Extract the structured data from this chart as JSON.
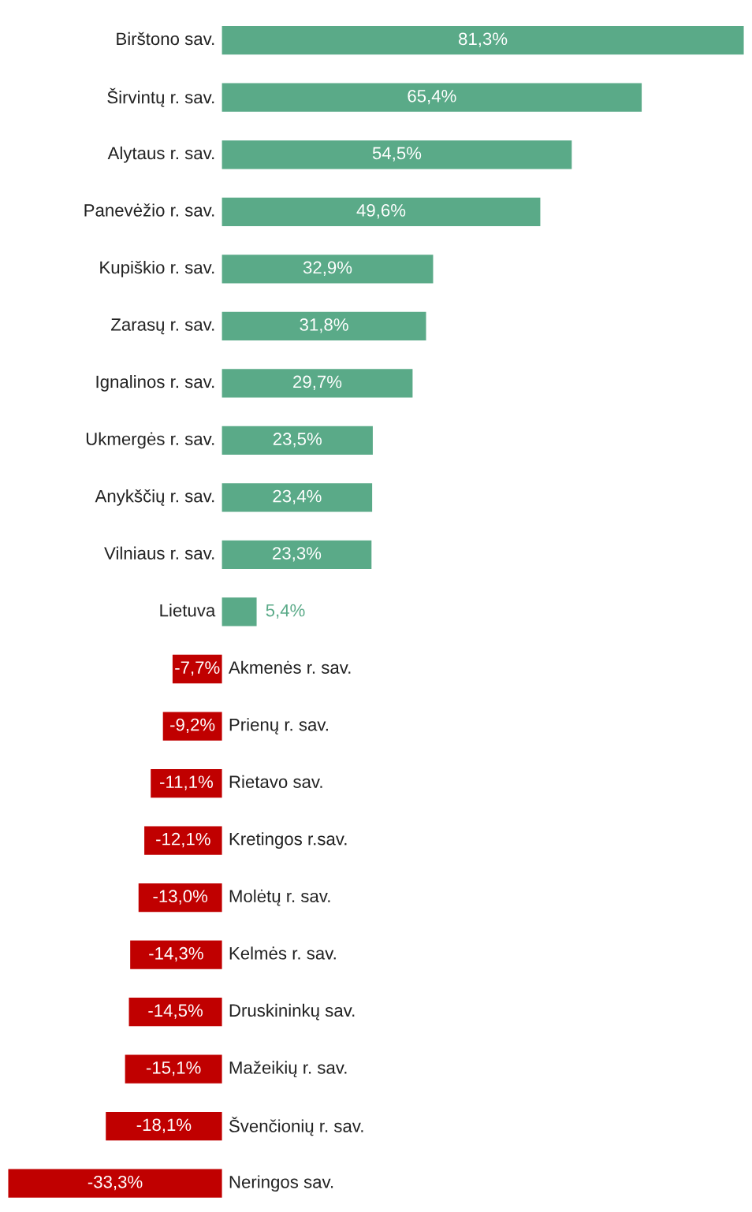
{
  "chart_data": {
    "type": "bar",
    "orientation": "horizontal",
    "categories": [
      "Birštono sav.",
      "Širvintų r. sav.",
      "Alytaus r. sav.",
      "Panevėžio r. sav.",
      "Kupiškio r. sav.",
      "Zarasų r. sav.",
      "Ignalinos r. sav.",
      "Ukmergės r. sav.",
      "Anykščių r. sav.",
      "Vilniaus r. sav.",
      "Lietuva",
      "Akmenės r. sav.",
      "Prienų r. sav.",
      "Rietavo sav.",
      "Kretingos r.sav.",
      "Molėtų r. sav.",
      "Kelmės r. sav.",
      "Druskininkų sav.",
      "Mažeikių r. sav.",
      "Švenčionių r. sav.",
      "Neringos sav."
    ],
    "values": [
      81.3,
      65.4,
      54.5,
      49.6,
      32.9,
      31.8,
      29.7,
      23.5,
      23.4,
      23.3,
      5.4,
      -7.7,
      -9.2,
      -11.1,
      -12.1,
      -13.0,
      -14.3,
      -14.5,
      -15.1,
      -18.1,
      -33.3
    ],
    "value_labels": [
      "81,3%",
      "65,4%",
      "54,5%",
      "49,6%",
      "32,9%",
      "31,8%",
      "29,7%",
      "23,5%",
      "23,4%",
      "23,3%",
      "5,4%",
      "-7,7%",
      "-9,2%",
      "-11,1%",
      "-12,1%",
      "-13,0%",
      "-14,3%",
      "-14,5%",
      "-15,1%",
      "-18,1%",
      "-33,3%"
    ],
    "colors": [
      "#5aaa88",
      "#5aaa88",
      "#5aaa88",
      "#5aaa88",
      "#5aaa88",
      "#5aaa88",
      "#5aaa88",
      "#5aaa88",
      "#5aaa88",
      "#5aaa88",
      "#5aaa88",
      "#c00000",
      "#c00000",
      "#c00000",
      "#c00000",
      "#c00000",
      "#c00000",
      "#c00000",
      "#c00000",
      "#c00000",
      "#c00000"
    ],
    "xlim": [
      -34,
      82
    ]
  }
}
